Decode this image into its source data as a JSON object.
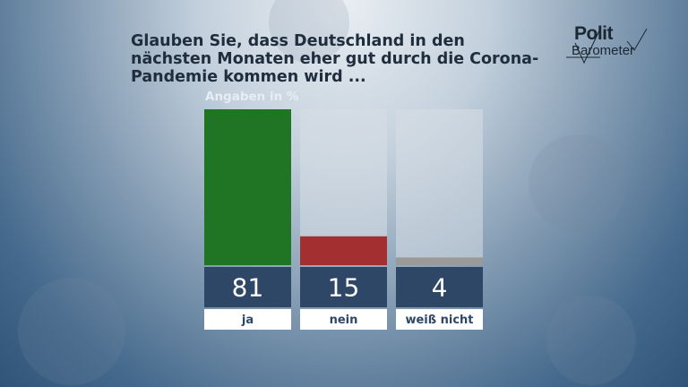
{
  "title": "Glauben Sie, dass Deutschland in den nächsten Monaten eher gut durch die Corona-Pandemie kommen wird ...",
  "logo": {
    "line1": "Polit",
    "line2": "Barometer"
  },
  "subtitle": "Angaben in %",
  "colors": {
    "ja": "#1f7523",
    "nein": "#a32f30",
    "weiss_nicht": "#9a9a9a",
    "track": "#d7dfe6",
    "value_box": "#2e4766",
    "label_box": "#ffffff"
  },
  "chart_data": {
    "type": "bar",
    "title": "Glauben Sie, dass Deutschland in den nächsten Monaten eher gut durch die Corona-Pandemie kommen wird ...",
    "ylabel": "Angaben in %",
    "categories": [
      "ja",
      "nein",
      "weiß nicht"
    ],
    "values": [
      81,
      15,
      4
    ],
    "bar_colors": [
      "#1f7523",
      "#a32f30",
      "#9a9a9a"
    ],
    "ylim": [
      0,
      81
    ],
    "grid": false,
    "legend": "none"
  }
}
